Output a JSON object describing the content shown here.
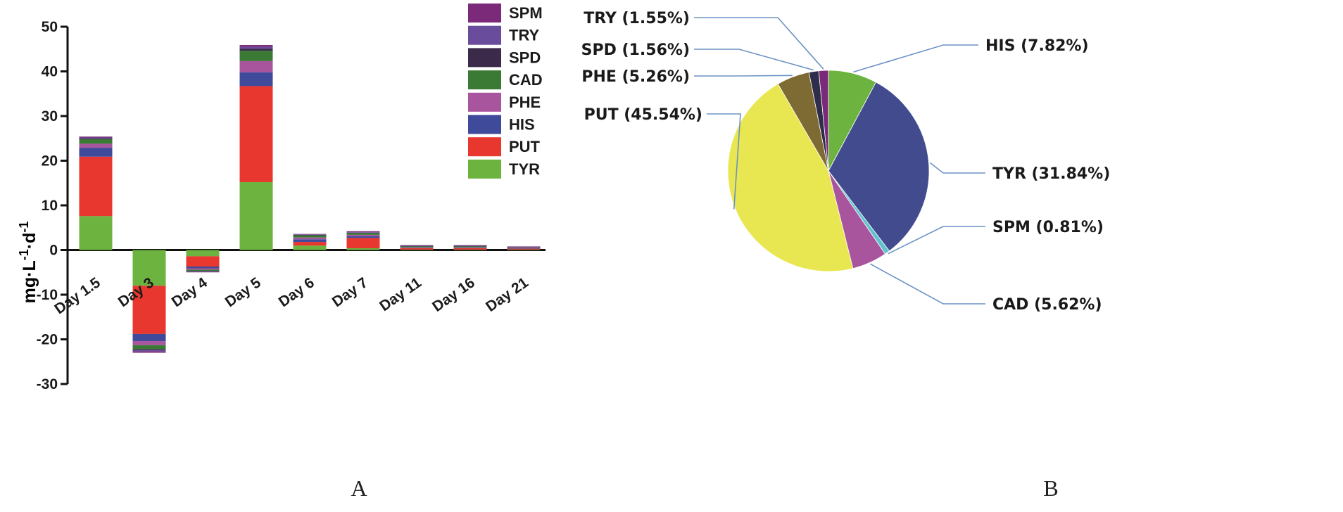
{
  "panel_a": {
    "label": "A",
    "ylabel": {
      "base": "mg·L",
      "exp1": "-1",
      "mid": "·d",
      "exp2": "-1"
    },
    "yticks": [
      "50",
      "40",
      "30",
      "20",
      "10",
      "0",
      "-10",
      "-20",
      "-30"
    ]
  },
  "panel_b": {
    "label": "B"
  },
  "colors": {
    "SPM": "#7b2a7a",
    "TRY": "#6a4c9c",
    "SPD": "#3b2a4a",
    "CAD": "#3b7a35",
    "PHE": "#a8559e",
    "HIS": "#3f4a9b",
    "PUT": "#e8372e",
    "TYR": "#6db33f"
  },
  "chart_data": [
    {
      "type": "bar",
      "stacked": true,
      "categories": [
        "Day 1.5",
        "Day 3",
        "Day 4",
        "Day 5",
        "Day 6",
        "Day 7",
        "Day 11",
        "Day 16",
        "Day 21"
      ],
      "ylabel": "mg·L-1·d-1",
      "ylim": [
        -30,
        50
      ],
      "legend_position": "top-right",
      "series": [
        {
          "name": "TYR",
          "values": [
            7.6,
            -8.0,
            -1.4,
            15.2,
            1.0,
            0.4,
            0.1,
            0.1,
            0.1
          ]
        },
        {
          "name": "PUT",
          "values": [
            13.3,
            -10.8,
            -2.3,
            21.5,
            0.8,
            2.3,
            0.3,
            0.3,
            0.2
          ]
        },
        {
          "name": "HIS",
          "values": [
            2.0,
            -1.6,
            -0.4,
            3.1,
            0.6,
            0.4,
            0.1,
            0.1,
            0.1
          ]
        },
        {
          "name": "PHE",
          "values": [
            0.9,
            -0.9,
            -0.3,
            2.5,
            0.4,
            0.3,
            0.1,
            0.1,
            0.1
          ]
        },
        {
          "name": "CAD",
          "values": [
            1.0,
            -0.9,
            -0.3,
            2.3,
            0.5,
            0.4,
            0.2,
            0.2,
            0.1
          ]
        },
        {
          "name": "SPD",
          "values": [
            0.2,
            -0.2,
            -0.1,
            0.5,
            0.1,
            0.1,
            0.1,
            0.1,
            0.05
          ]
        },
        {
          "name": "TRY",
          "values": [
            0.2,
            -0.3,
            -0.1,
            0.4,
            0.1,
            0.1,
            0.05,
            0.05,
            0.05
          ]
        },
        {
          "name": "SPM",
          "values": [
            0.2,
            -0.3,
            -0.1,
            0.4,
            0.1,
            0.2,
            0.15,
            0.15,
            0.1
          ]
        }
      ]
    },
    {
      "type": "pie",
      "slices": [
        {
          "name": "HIS",
          "label": "HIS (7.82%)",
          "value": 7.82,
          "color": "#6db33f"
        },
        {
          "name": "TYR",
          "label": "TYR (31.84%)",
          "value": 31.84,
          "color": "#414b8e"
        },
        {
          "name": "SPM",
          "label": "SPM (0.81%)",
          "value": 0.81,
          "color": "#62c3cf"
        },
        {
          "name": "CAD",
          "label": "CAD (5.62%)",
          "value": 5.62,
          "color": "#a8559e"
        },
        {
          "name": "PUT",
          "label": "PUT (45.54%)",
          "value": 45.54,
          "color": "#e8e751"
        },
        {
          "name": "PHE",
          "label": "PHE (5.26%)",
          "value": 5.26,
          "color": "#7e6a33"
        },
        {
          "name": "SPD",
          "label": "SPD (1.56%)",
          "value": 1.56,
          "color": "#2e2d4a"
        },
        {
          "name": "TRY",
          "label": "TRY (1.55%)",
          "value": 1.55,
          "color": "#7b2a7a"
        }
      ]
    }
  ]
}
